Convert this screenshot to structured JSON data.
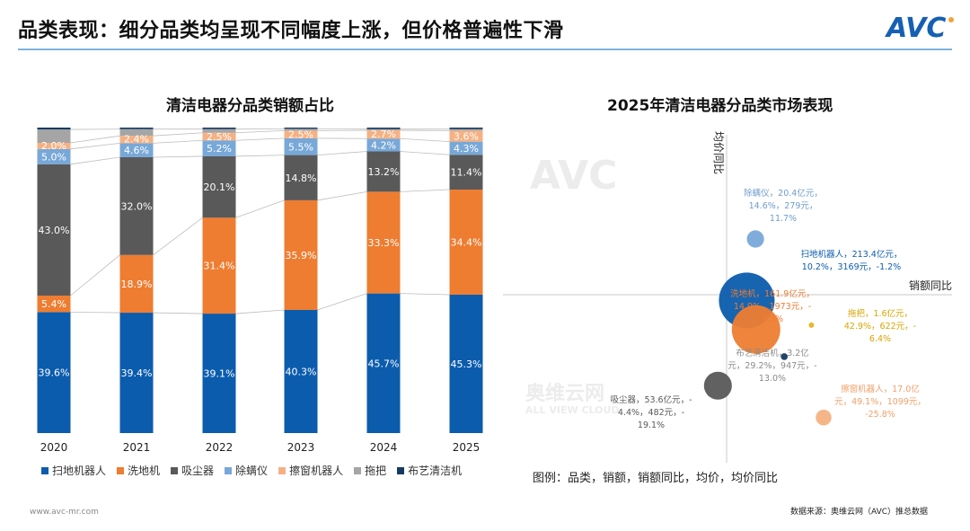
{
  "header": {
    "title": "品类表现：细分品类均呈现不同幅度上涨，但价格普遍性下滑",
    "logo_text": "AVC"
  },
  "footer": {
    "website": "www.avc-mr.com",
    "source": "数据来源：奥维云网（AVC）推总数据"
  },
  "watermark": {
    "brand": "AVC",
    "cn": "奥维云网",
    "en": "ALL VIEW CLOUD"
  },
  "colors": {
    "扫地机器人": "#0b5cad",
    "洗地机": "#ee7d31",
    "吸尘器": "#595959",
    "除螨仪": "#78a8d8",
    "擦窗机器人": "#f5b183",
    "拖把": "#a5a5a5",
    "布艺清洁机": "#173a62",
    "拖把_label": "#e6b521"
  },
  "chart_data": [
    {
      "type": "bar",
      "stacked": true,
      "percent": true,
      "title": "清洁电器分品类销额占比",
      "xlabel": "",
      "ylabel": "",
      "ylim": [
        0,
        100
      ],
      "categories": [
        "2020",
        "2021",
        "2022",
        "2023",
        "2024",
        "2025"
      ],
      "legend_position": "bottom",
      "series": [
        {
          "name": "扫地机器人",
          "values": [
            39.6,
            39.4,
            39.1,
            40.3,
            45.7,
            45.3
          ],
          "labels": [
            "39.6%",
            "39.4%",
            "39.1%",
            "40.3%",
            "45.7%",
            "45.3%"
          ]
        },
        {
          "name": "洗地机",
          "values": [
            5.4,
            18.9,
            31.4,
            35.9,
            33.3,
            34.4
          ],
          "labels": [
            "5.4%",
            "18.9%",
            "31.4%",
            "35.9%",
            "33.3%",
            "34.4%"
          ]
        },
        {
          "name": "吸尘器",
          "values": [
            43.0,
            32.0,
            20.1,
            14.8,
            13.2,
            11.4
          ],
          "labels": [
            "43.0%",
            "32.0%",
            "20.1%",
            "14.8%",
            "13.2%",
            "11.4%"
          ]
        },
        {
          "name": "除螨仪",
          "values": [
            5.0,
            4.6,
            5.2,
            5.5,
            4.2,
            4.3
          ],
          "labels": [
            "5.0%",
            "4.6%",
            "5.2%",
            "5.5%",
            "4.2%",
            "4.3%"
          ]
        },
        {
          "name": "擦窗机器人",
          "values": [
            2.0,
            2.4,
            2.5,
            2.5,
            2.7,
            3.6
          ],
          "labels": [
            "2.0%",
            "2.4%",
            "2.5%",
            "2.5%",
            "2.7%",
            "3.6%"
          ]
        },
        {
          "name": "拖把",
          "values": [
            4.4,
            2.2,
            1.2,
            0.6,
            0.4,
            0.5
          ],
          "labels": [
            "",
            "",
            "",
            "",
            "",
            ""
          ]
        },
        {
          "name": "布艺清洁机",
          "values": [
            0.6,
            0.5,
            0.5,
            0.4,
            0.5,
            0.5
          ],
          "labels": [
            "",
            "",
            "",
            "",
            "",
            ""
          ]
        }
      ]
    },
    {
      "type": "scatter",
      "bubble": true,
      "title": "2025年清洁电器分品类市场表现",
      "xlabel": "销额同比",
      "ylabel": "均价同比",
      "legend_note": "图例：品类，销额，销额同比，均价，均价同比",
      "points": [
        {
          "name": "除螨仪",
          "sales": 20.4,
          "sales_yoy": 14.6,
          "price": 279,
          "price_yoy": 11.7,
          "label_lines": [
            "除螨仪，20.4亿元，",
            "14.6%，279元，",
            "11.7%"
          ]
        },
        {
          "name": "扫地机器人",
          "sales": 213.4,
          "sales_yoy": 10.2,
          "price": 3169,
          "price_yoy": -1.2,
          "label_lines": [
            "扫地机器人，213.4亿元，",
            "10.2%，3169元，-1.2%"
          ]
        },
        {
          "name": "洗地机",
          "sales": 161.9,
          "sales_yoy": 14.9,
          "price": 1973,
          "price_yoy": -7.3,
          "label_lines": [
            "洗地机，161.9亿元，",
            "14.9%，1973元，-",
            "7.3%"
          ]
        },
        {
          "name": "拖把",
          "sales": 1.6,
          "sales_yoy": 42.9,
          "price": 622,
          "price_yoy": -6.4,
          "label_lines": [
            "拖把，1.6亿元，",
            "42.9%，622元，-",
            "6.4%"
          ]
        },
        {
          "name": "布艺清洁机",
          "sales": 3.2,
          "sales_yoy": 29.2,
          "price": 947,
          "price_yoy": -13.0,
          "label_lines": [
            "布艺清洁机，3.2亿",
            "元，29.2%，947元，-",
            "13.0%"
          ]
        },
        {
          "name": "吸尘器",
          "sales": 53.6,
          "sales_yoy": -4.4,
          "price": 482,
          "price_yoy": -19.1,
          "label_lines": [
            "吸尘器，53.6亿元，-",
            "4.4%，482元，-",
            "19.1%"
          ]
        },
        {
          "name": "擦窗机器人",
          "sales": 17.0,
          "sales_yoy": 49.1,
          "price": 1099,
          "price_yoy": -25.8,
          "label_lines": [
            "擦窗机器人，17.0亿",
            "元，49.1%，1099元，",
            "-25.8%"
          ]
        }
      ]
    }
  ]
}
